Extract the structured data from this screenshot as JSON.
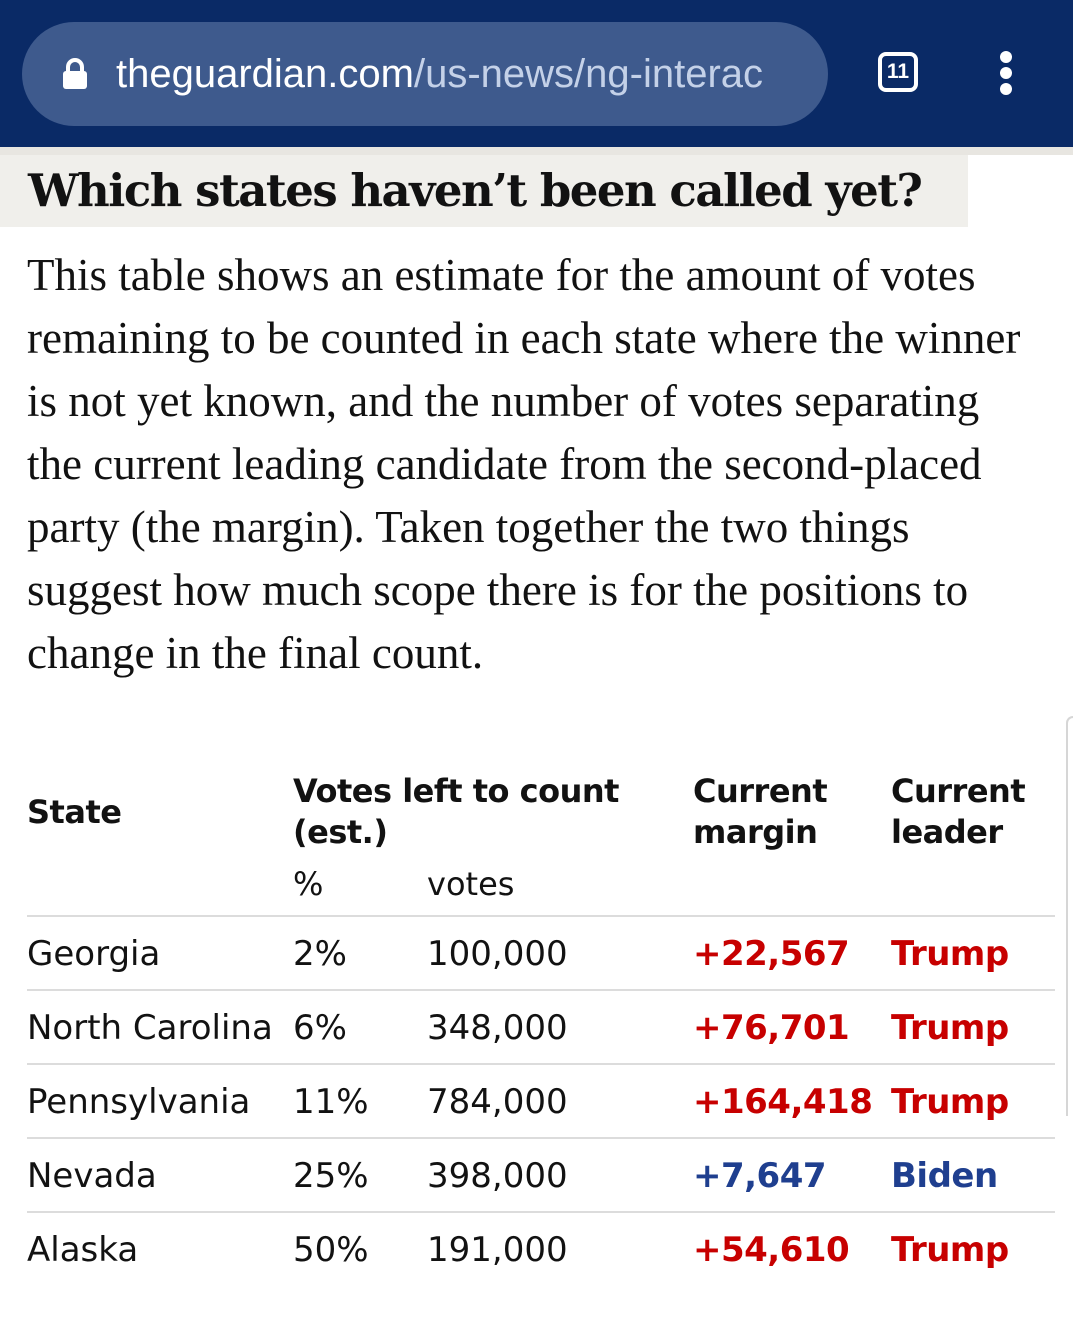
{
  "browser": {
    "url_domain": "theguardian.com",
    "url_path": "/us-news/ng-interac",
    "tab_count": "11",
    "menu_icon": "kebab-menu-icon",
    "lock_icon": "lock-icon",
    "colors": {
      "toolbar": "#0a2a66",
      "urlbar": "#3e5a8d"
    }
  },
  "article": {
    "heading": "Which states haven’t been called yet?",
    "intro": "This table shows an estimate for the amount of votes remaining to be counted in each state where the winner is not yet known, and the number of votes separating the current leading candidate from the second-placed party (the margin). Taken together the two things suggest how much scope there is for the positions to change in the final count."
  },
  "table": {
    "headers": {
      "state": "State",
      "votes_left_line1": "Votes left to count",
      "votes_left_line2": "(est.)",
      "percent": "%",
      "votes": "votes",
      "margin_line1": "Current",
      "margin_line2": "margin",
      "leader_line1": "Current",
      "leader_line2": "leader"
    },
    "rows": [
      {
        "state": "Georgia",
        "percent": "2%",
        "votes": "100,000",
        "margin": "+22,567",
        "leader": "Trump",
        "party": "red"
      },
      {
        "state": "North Carolina",
        "percent": "6%",
        "votes": "348,000",
        "margin": "+76,701",
        "leader": "Trump",
        "party": "red"
      },
      {
        "state": "Pennsylvania",
        "percent": "11%",
        "votes": "784,000",
        "margin": "+164,418",
        "leader": "Trump",
        "party": "red"
      },
      {
        "state": "Nevada",
        "percent": "25%",
        "votes": "398,000",
        "margin": "+7,647",
        "leader": "Biden",
        "party": "blue"
      },
      {
        "state": "Alaska",
        "percent": "50%",
        "votes": "191,000",
        "margin": "+54,610",
        "leader": "Trump",
        "party": "red"
      }
    ],
    "colors": {
      "red": "#c70000",
      "blue": "#1f3f8f"
    }
  }
}
